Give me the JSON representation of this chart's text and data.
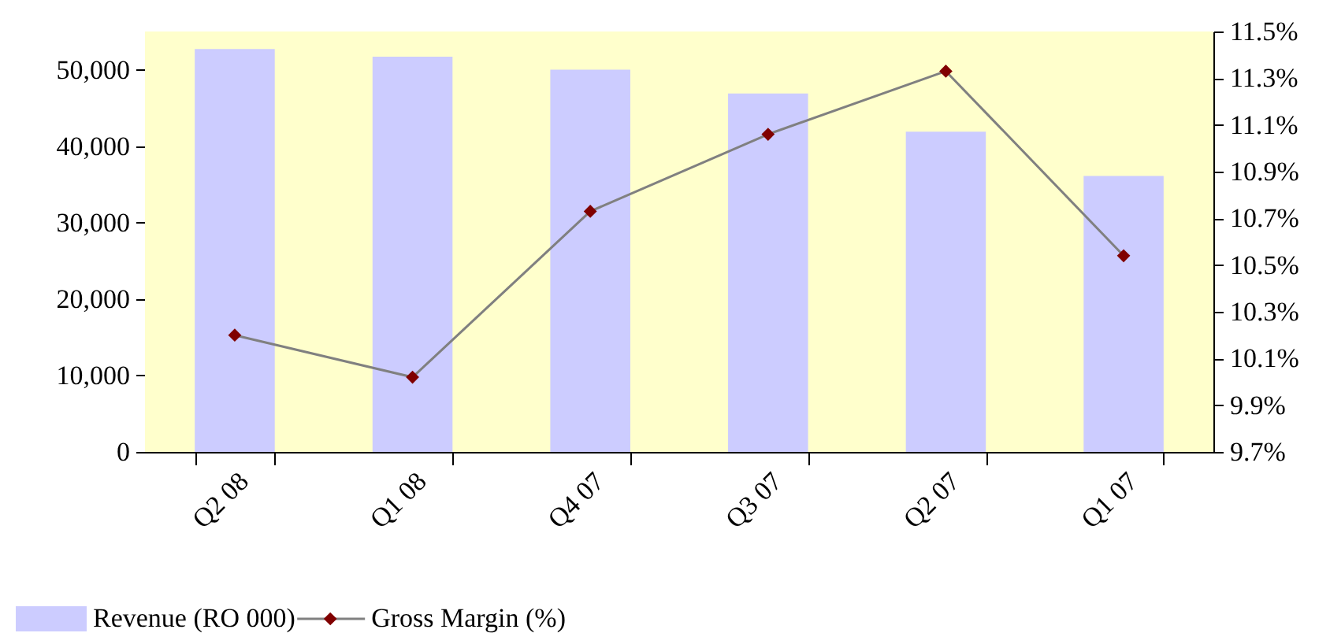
{
  "chart_data": {
    "type": "bar",
    "categories": [
      "Q2 08",
      "Q1 08",
      "Q4 07",
      "Q3 07",
      "Q2 07",
      "Q1 07"
    ],
    "series": [
      {
        "name": "Revenue (RO 000)",
        "color": "#ccccff",
        "values": [
          52700,
          51700,
          50000,
          46900,
          41900,
          36100
        ]
      },
      {
        "name": "Gross Margin (%)",
        "type": "line",
        "axis": "y2",
        "color": "#800000",
        "marker": "diamond",
        "values": [
          10.2,
          10.02,
          10.73,
          11.06,
          11.33,
          10.54
        ]
      }
    ],
    "ylim": [
      0,
      55000
    ],
    "yticks": [
      0,
      {
        "value": 10000,
        "label": "10,000"
      },
      {
        "value": 20000,
        "label": "20,000"
      },
      {
        "value": 30000,
        "label": "30,000"
      },
      {
        "value": 40000,
        "label": "40,000"
      },
      {
        "value": 50000,
        "label": "50,000"
      }
    ],
    "y2lim": [
      9.7,
      11.5
    ],
    "y2ticks": [
      {
        "value": 9.7,
        "label": "9.7%"
      },
      {
        "value": 9.9,
        "label": "9.9%"
      },
      {
        "value": 10.1,
        "label": "10.1%"
      },
      {
        "value": 10.3,
        "label": "10.3%"
      },
      {
        "value": 10.5,
        "label": "10.5%"
      },
      {
        "value": 10.7,
        "label": "10.7%"
      },
      {
        "value": 10.9,
        "label": "10.9%"
      },
      {
        "value": 11.1,
        "label": "11.1%"
      },
      {
        "value": 11.3,
        "label": "11.3%"
      },
      {
        "value": 11.5,
        "label": "11.5%"
      }
    ],
    "legend": "bottom left"
  }
}
